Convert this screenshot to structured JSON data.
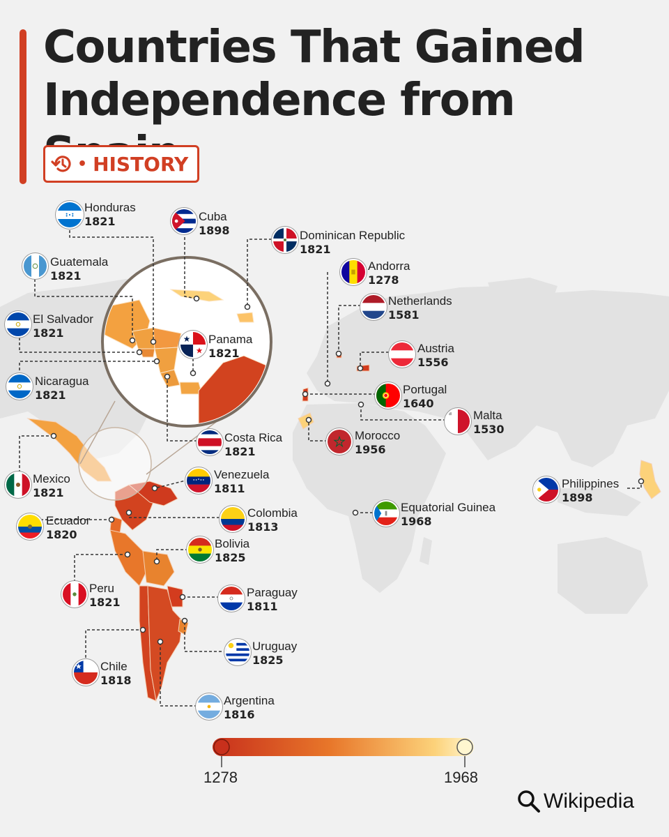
{
  "header": {
    "title_line1": "Countries That Gained",
    "title_line2": "Independence from Spain",
    "category": "HISTORY",
    "category_icon": "history-clock-icon"
  },
  "legend": {
    "min_label": "1278",
    "max_label": "1968",
    "colors": [
      "#c8301c",
      "#e8772a",
      "#fcd27a",
      "#fff6d0"
    ]
  },
  "source": {
    "text": "Wikipedia",
    "icon": "search-icon"
  },
  "colors": {
    "accent": "#d13f23",
    "land": "#e2e2e2",
    "ocean": "#f1f1f1"
  },
  "countries": [
    {
      "name": "Honduras",
      "year": "1821",
      "flag": "honduras"
    },
    {
      "name": "Cuba",
      "year": "1898",
      "flag": "cuba"
    },
    {
      "name": "Dominican Republic",
      "year": "1821",
      "flag": "dominican-republic"
    },
    {
      "name": "Guatemala",
      "year": "1821",
      "flag": "guatemala"
    },
    {
      "name": "El Salvador",
      "year": "1821",
      "flag": "el-salvador"
    },
    {
      "name": "Panama",
      "year": "1821",
      "flag": "panama"
    },
    {
      "name": "Nicaragua",
      "year": "1821",
      "flag": "nicaragua"
    },
    {
      "name": "Costa Rica",
      "year": "1821",
      "flag": "costa-rica"
    },
    {
      "name": "Mexico",
      "year": "1821",
      "flag": "mexico"
    },
    {
      "name": "Venezuela",
      "year": "1811",
      "flag": "venezuela"
    },
    {
      "name": "Ecuador",
      "year": "1820",
      "flag": "ecuador"
    },
    {
      "name": "Colombia",
      "year": "1813",
      "flag": "colombia"
    },
    {
      "name": "Bolivia",
      "year": "1825",
      "flag": "bolivia"
    },
    {
      "name": "Peru",
      "year": "1821",
      "flag": "peru"
    },
    {
      "name": "Paraguay",
      "year": "1811",
      "flag": "paraguay"
    },
    {
      "name": "Uruguay",
      "year": "1825",
      "flag": "uruguay"
    },
    {
      "name": "Chile",
      "year": "1818",
      "flag": "chile"
    },
    {
      "name": "Argentina",
      "year": "1816",
      "flag": "argentina"
    },
    {
      "name": "Andorra",
      "year": "1278",
      "flag": "andorra"
    },
    {
      "name": "Netherlands",
      "year": "1581",
      "flag": "netherlands"
    },
    {
      "name": "Austria",
      "year": "1556",
      "flag": "austria"
    },
    {
      "name": "Portugal",
      "year": "1640",
      "flag": "portugal"
    },
    {
      "name": "Malta",
      "year": "1530",
      "flag": "malta"
    },
    {
      "name": "Morocco",
      "year": "1956",
      "flag": "morocco"
    },
    {
      "name": "Equatorial Guinea",
      "year": "1968",
      "flag": "equatorial-guinea"
    },
    {
      "name": "Philippines",
      "year": "1898",
      "flag": "philippines"
    }
  ]
}
